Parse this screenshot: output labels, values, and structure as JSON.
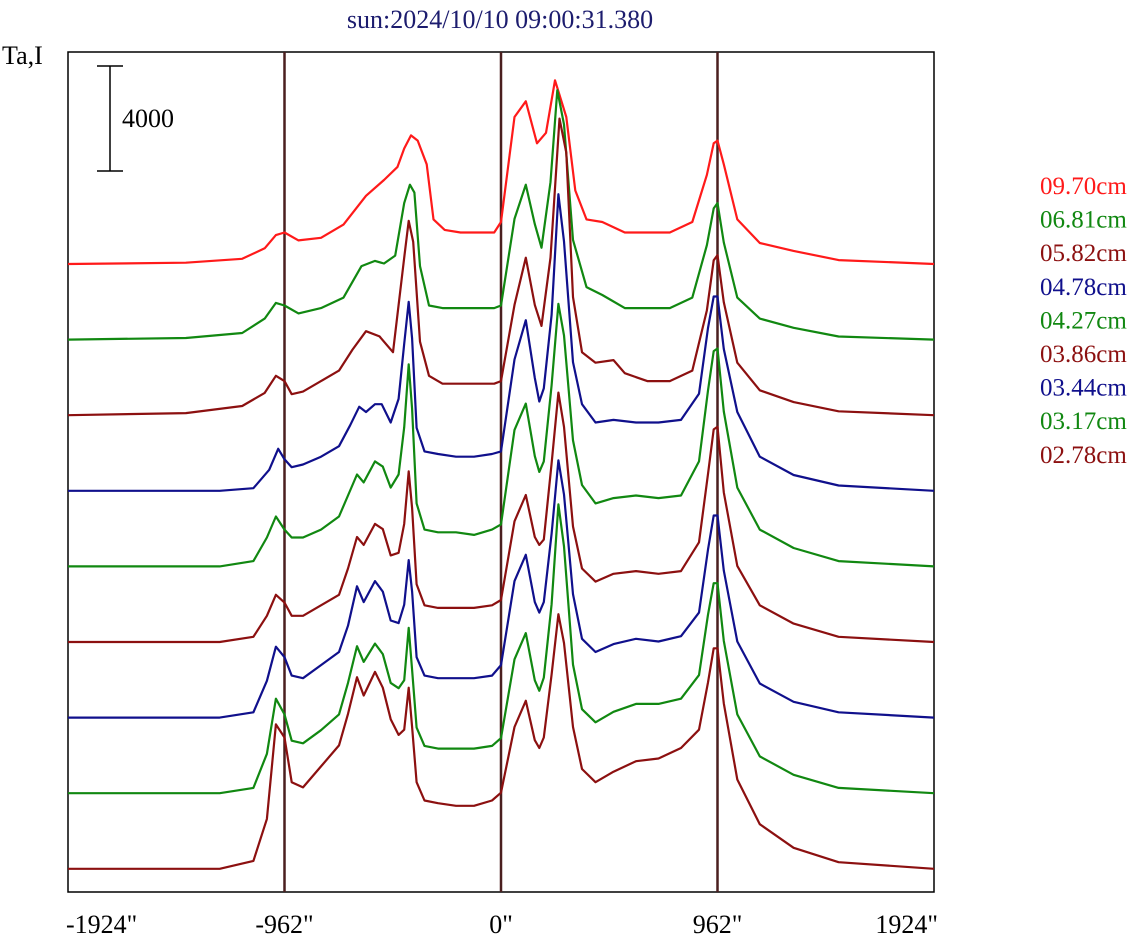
{
  "chart_data": {
    "type": "line",
    "title": "sun:2024/10/10 09:00:31.380",
    "ylabel": "Ta,I",
    "xlabel": "",
    "x_ticks": [
      {
        "value": -1924,
        "label": "-1924\""
      },
      {
        "value": -962,
        "label": "-962\""
      },
      {
        "value": 0,
        "label": "0\""
      },
      {
        "value": 962,
        "label": "962\""
      },
      {
        "value": 1924,
        "label": "1924\""
      }
    ],
    "xlim": [
      -1924,
      1924
    ],
    "reference_lines_x": [
      -962,
      0,
      962
    ],
    "scale_bar": {
      "value": 4000,
      "label": "4000"
    },
    "legend_position": "right",
    "grid": false,
    "series": [
      {
        "name": "09.70cm",
        "color": "#ff1a1a",
        "baseline": 0,
        "x": [
          -1924,
          -1400,
          -1150,
          -1050,
          -1000,
          -962,
          -900,
          -800,
          -700,
          -600,
          -520,
          -460,
          -430,
          -400,
          -370,
          -330,
          -300,
          -250,
          -180,
          -100,
          -30,
          0,
          60,
          110,
          160,
          200,
          240,
          290,
          330,
          380,
          450,
          550,
          650,
          750,
          850,
          915,
          945,
          962,
          990,
          1050,
          1150,
          1300,
          1500,
          1924
        ],
        "y": [
          0,
          50,
          200,
          600,
          1100,
          1200,
          900,
          1000,
          1500,
          2600,
          3200,
          3700,
          4400,
          4900,
          4700,
          3800,
          1700,
          1300,
          1200,
          1200,
          1200,
          1600,
          5600,
          6200,
          4600,
          5000,
          7000,
          5600,
          2800,
          1700,
          1600,
          1200,
          1200,
          1200,
          1600,
          3400,
          4600,
          4700,
          3800,
          1700,
          800,
          500,
          150,
          0
        ]
      },
      {
        "name": "06.81cm",
        "color": "#118811",
        "baseline": 1,
        "x": [
          -1924,
          -1400,
          -1150,
          -1050,
          -1000,
          -962,
          -900,
          -800,
          -700,
          -620,
          -560,
          -520,
          -470,
          -430,
          -405,
          -385,
          -360,
          -320,
          -260,
          -180,
          -100,
          -30,
          0,
          60,
          110,
          150,
          180,
          220,
          250,
          280,
          320,
          380,
          450,
          550,
          650,
          750,
          850,
          915,
          945,
          962,
          990,
          1050,
          1150,
          1300,
          1500,
          1924
        ],
        "y": [
          0,
          60,
          250,
          800,
          1400,
          1300,
          1000,
          1200,
          1600,
          2800,
          3000,
          2900,
          3200,
          5200,
          5900,
          5600,
          2800,
          1300,
          1200,
          1200,
          1200,
          1200,
          1300,
          4600,
          5900,
          4400,
          3500,
          6000,
          9500,
          8200,
          3800,
          2000,
          1700,
          1200,
          1200,
          1200,
          1600,
          3600,
          5000,
          5200,
          3700,
          1600,
          800,
          450,
          120,
          0
        ]
      },
      {
        "name": "05.82cm",
        "color": "#8c1010",
        "baseline": 2,
        "x": [
          -1924,
          -1400,
          -1150,
          -1050,
          -1000,
          -962,
          -930,
          -880,
          -800,
          -720,
          -660,
          -600,
          -540,
          -480,
          -430,
          -410,
          -390,
          -360,
          -320,
          -260,
          -180,
          -100,
          -30,
          0,
          60,
          110,
          150,
          180,
          220,
          260,
          290,
          320,
          360,
          420,
          500,
          550,
          650,
          750,
          850,
          915,
          945,
          962,
          990,
          1050,
          1150,
          1300,
          1500,
          1924
        ],
        "y": [
          0,
          80,
          350,
          850,
          1500,
          1300,
          800,
          900,
          1300,
          1700,
          2500,
          3200,
          3000,
          2400,
          6000,
          7400,
          6600,
          2800,
          1500,
          1200,
          1200,
          1200,
          1200,
          1300,
          4200,
          6000,
          4200,
          3400,
          6000,
          11300,
          10000,
          4500,
          2400,
          2000,
          2100,
          1600,
          1300,
          1300,
          1700,
          4000,
          5900,
          6100,
          4300,
          2000,
          950,
          500,
          150,
          0
        ]
      },
      {
        "name": "04.78cm",
        "color": "#10108c",
        "baseline": 3,
        "x": [
          -1924,
          -1500,
          -1250,
          -1100,
          -1030,
          -990,
          -962,
          -930,
          -880,
          -800,
          -720,
          -670,
          -630,
          -600,
          -560,
          -530,
          -490,
          -455,
          -430,
          -410,
          -395,
          -375,
          -340,
          -280,
          -200,
          -120,
          -40,
          0,
          60,
          110,
          150,
          170,
          190,
          225,
          255,
          280,
          320,
          360,
          420,
          500,
          600,
          700,
          800,
          880,
          920,
          945,
          962,
          990,
          1050,
          1150,
          1300,
          1500,
          1924
        ],
        "y": [
          0,
          0,
          0,
          100,
          800,
          1600,
          1200,
          900,
          1000,
          1300,
          1700,
          2500,
          3200,
          3000,
          3300,
          3300,
          2600,
          3500,
          5600,
          7200,
          5800,
          2400,
          1500,
          1400,
          1300,
          1300,
          1400,
          1500,
          5000,
          6500,
          4300,
          3400,
          3900,
          6700,
          11300,
          9500,
          4900,
          3300,
          2600,
          2700,
          2600,
          2600,
          2700,
          3700,
          6200,
          7400,
          7400,
          5400,
          3000,
          1300,
          600,
          200,
          0
        ]
      },
      {
        "name": "04.27cm",
        "color": "#118811",
        "baseline": 4,
        "x": [
          -1924,
          -1500,
          -1250,
          -1100,
          -1040,
          -1000,
          -962,
          -930,
          -880,
          -800,
          -720,
          -680,
          -640,
          -610,
          -560,
          -525,
          -490,
          -455,
          -430,
          -410,
          -395,
          -375,
          -340,
          -280,
          -200,
          -120,
          -40,
          0,
          60,
          110,
          150,
          170,
          190,
          225,
          255,
          280,
          320,
          360,
          420,
          500,
          600,
          700,
          800,
          880,
          920,
          945,
          962,
          990,
          1050,
          1150,
          1300,
          1500,
          1924
        ],
        "y": [
          0,
          0,
          0,
          200,
          1100,
          1900,
          1400,
          1100,
          1100,
          1400,
          1900,
          2700,
          3500,
          3200,
          4000,
          3800,
          3000,
          3500,
          5300,
          7700,
          6000,
          2400,
          1400,
          1300,
          1300,
          1200,
          1400,
          1600,
          5200,
          6200,
          4200,
          3600,
          4000,
          6900,
          10000,
          8800,
          4800,
          3100,
          2400,
          2600,
          2700,
          2600,
          2700,
          4000,
          6700,
          8200,
          8300,
          5900,
          3000,
          1400,
          700,
          200,
          0
        ]
      },
      {
        "name": "03.86cm",
        "color": "#8c1010",
        "baseline": 5,
        "x": [
          -1924,
          -1500,
          -1250,
          -1100,
          -1040,
          -1000,
          -962,
          -930,
          -880,
          -800,
          -720,
          -680,
          -640,
          -610,
          -560,
          -525,
          -490,
          -455,
          -430,
          -410,
          -395,
          -375,
          -340,
          -280,
          -200,
          -120,
          -40,
          0,
          60,
          110,
          150,
          170,
          190,
          225,
          255,
          280,
          320,
          360,
          420,
          500,
          600,
          700,
          800,
          880,
          920,
          945,
          962,
          990,
          1050,
          1150,
          1300,
          1500,
          1924
        ],
        "y": [
          0,
          0,
          0,
          200,
          1000,
          1800,
          1500,
          1000,
          1000,
          1400,
          1800,
          2800,
          4000,
          3700,
          4500,
          4300,
          3300,
          3400,
          4500,
          6500,
          5100,
          2200,
          1400,
          1300,
          1300,
          1300,
          1400,
          1600,
          4600,
          5600,
          4000,
          3700,
          3900,
          6800,
          9500,
          8200,
          4400,
          2800,
          2300,
          2600,
          2700,
          2600,
          2700,
          3800,
          6400,
          8100,
          8200,
          5700,
          2900,
          1400,
          700,
          200,
          0
        ]
      },
      {
        "name": "03.44cm",
        "color": "#10108c",
        "baseline": 6,
        "x": [
          -1924,
          -1500,
          -1250,
          -1100,
          -1040,
          -1000,
          -962,
          -930,
          -880,
          -800,
          -720,
          -680,
          -640,
          -610,
          -560,
          -525,
          -490,
          -455,
          -430,
          -410,
          -395,
          -375,
          -340,
          -280,
          -200,
          -120,
          -40,
          0,
          60,
          110,
          150,
          170,
          190,
          225,
          255,
          280,
          320,
          360,
          420,
          500,
          600,
          700,
          800,
          880,
          920,
          945,
          962,
          990,
          1050,
          1150,
          1300,
          1500,
          1924
        ],
        "y": [
          0,
          0,
          0,
          200,
          1400,
          2700,
          2300,
          1600,
          1500,
          2000,
          2500,
          3500,
          5000,
          4400,
          5200,
          4800,
          3700,
          3600,
          4300,
          6000,
          4800,
          2300,
          1600,
          1500,
          1500,
          1500,
          1600,
          2000,
          5200,
          6200,
          4400,
          4000,
          4400,
          7000,
          9800,
          8500,
          4700,
          3000,
          2500,
          2800,
          3000,
          2900,
          3100,
          4000,
          6400,
          7700,
          7700,
          5600,
          2900,
          1300,
          600,
          200,
          0
        ]
      },
      {
        "name": "03.17cm",
        "color": "#118811",
        "baseline": 7,
        "x": [
          -1924,
          -1500,
          -1250,
          -1100,
          -1040,
          -1000,
          -962,
          -930,
          -880,
          -800,
          -720,
          -680,
          -640,
          -610,
          -560,
          -525,
          -490,
          -455,
          -430,
          -410,
          -395,
          -375,
          -340,
          -280,
          -200,
          -120,
          -40,
          0,
          60,
          110,
          150,
          170,
          190,
          225,
          255,
          280,
          320,
          360,
          420,
          500,
          600,
          700,
          800,
          880,
          920,
          945,
          962,
          990,
          1050,
          1150,
          1300,
          1500,
          1924
        ],
        "y": [
          0,
          0,
          0,
          200,
          1500,
          3600,
          3000,
          2000,
          1900,
          2400,
          3000,
          4200,
          5600,
          5000,
          5700,
          5300,
          4200,
          4000,
          4300,
          6300,
          4700,
          2500,
          1800,
          1700,
          1700,
          1700,
          1800,
          2100,
          5100,
          6100,
          4300,
          3900,
          4400,
          7200,
          11000,
          9400,
          4900,
          3200,
          2700,
          3100,
          3400,
          3400,
          3600,
          4500,
          6800,
          8000,
          8000,
          5800,
          3000,
          1400,
          700,
          200,
          0
        ]
      },
      {
        "name": "02.78cm",
        "color": "#8c1010",
        "baseline": 8,
        "x": [
          -1924,
          -1500,
          -1250,
          -1100,
          -1040,
          -1000,
          -962,
          -930,
          -880,
          -800,
          -720,
          -680,
          -640,
          -610,
          -560,
          -525,
          -490,
          -455,
          -430,
          -410,
          -395,
          -375,
          -340,
          -280,
          -200,
          -120,
          -40,
          0,
          60,
          110,
          150,
          170,
          190,
          225,
          255,
          280,
          320,
          360,
          420,
          500,
          600,
          700,
          800,
          880,
          920,
          945,
          962,
          990,
          1050,
          1150,
          1300,
          1500,
          1924
        ],
        "y": [
          0,
          0,
          0,
          300,
          1900,
          5500,
          5000,
          3300,
          3100,
          3900,
          4700,
          5900,
          7300,
          6600,
          7500,
          6900,
          5700,
          5100,
          5300,
          6900,
          5400,
          3300,
          2600,
          2500,
          2400,
          2400,
          2600,
          2900,
          5400,
          6400,
          4900,
          4600,
          5000,
          7400,
          9700,
          8600,
          5400,
          3800,
          3300,
          3700,
          4100,
          4200,
          4600,
          5300,
          7100,
          8400,
          8400,
          6300,
          3400,
          1700,
          800,
          250,
          0
        ]
      }
    ]
  }
}
